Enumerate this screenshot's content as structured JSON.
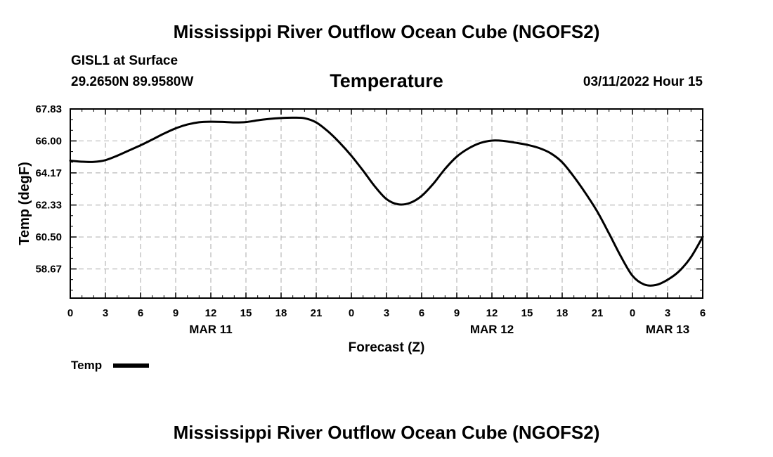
{
  "header": {
    "title": "Mississippi River Outflow Ocean Cube (NGOFS2)",
    "station": "GISL1 at Surface",
    "coords": "29.2650N  89.9580W",
    "datetime": "03/11/2022 Hour 15"
  },
  "footer": {
    "title": "Mississippi River Outflow Ocean Cube (NGOFS2)"
  },
  "chart_data": {
    "type": "line",
    "title": "Temperature",
    "xlabel": "Forecast (Z)",
    "ylabel": "Temp (degF)",
    "xlim": [
      0,
      54
    ],
    "ylim": [
      57.0,
      67.83
    ],
    "yticks": [
      67.83,
      66.0,
      64.17,
      62.33,
      60.5,
      58.67
    ],
    "ytick_labels": [
      "67.83",
      "66.00",
      "64.17",
      "62.33",
      "60.50",
      "58.67"
    ],
    "xticks": [
      0,
      3,
      6,
      9,
      12,
      15,
      18,
      21,
      24,
      27,
      30,
      33,
      36,
      39,
      42,
      45,
      48,
      51,
      54
    ],
    "xtick_labels": [
      "0",
      "3",
      "6",
      "9",
      "12",
      "15",
      "18",
      "21",
      "0",
      "3",
      "6",
      "9",
      "12",
      "15",
      "18",
      "21",
      "0",
      "3",
      "6"
    ],
    "date_labels": [
      {
        "x": 12,
        "label": "MAR 11"
      },
      {
        "x": 36,
        "label": "MAR 12"
      },
      {
        "x": 51,
        "label": "MAR 13"
      }
    ],
    "grid": true,
    "legend": {
      "position": "bottom-left",
      "entries": [
        "Temp"
      ]
    },
    "series": [
      {
        "name": "Temp",
        "color": "#000000",
        "x": [
          0,
          1,
          2,
          3,
          4,
          5,
          6,
          7,
          8,
          9,
          10,
          11,
          12,
          13,
          14,
          15,
          16,
          17,
          18,
          19,
          20,
          21,
          22,
          23,
          24,
          25,
          26,
          27,
          28,
          29,
          30,
          31,
          32,
          33,
          34,
          35,
          36,
          37,
          38,
          39,
          40,
          41,
          42,
          43,
          44,
          45,
          46,
          47,
          48,
          49,
          50,
          51,
          52,
          53,
          54
        ],
        "y": [
          64.87,
          64.81,
          64.8,
          64.9,
          65.15,
          65.45,
          65.75,
          66.08,
          66.42,
          66.72,
          66.94,
          67.07,
          67.1,
          67.09,
          67.06,
          67.08,
          67.18,
          67.26,
          67.31,
          67.33,
          67.3,
          67.06,
          66.55,
          65.9,
          65.15,
          64.3,
          63.4,
          62.67,
          62.37,
          62.45,
          62.85,
          63.55,
          64.4,
          65.1,
          65.57,
          65.88,
          66.02,
          66.0,
          65.9,
          65.78,
          65.6,
          65.3,
          64.78,
          63.95,
          63.0,
          61.95,
          60.7,
          59.4,
          58.28,
          57.78,
          57.75,
          58.05,
          58.55,
          59.35,
          60.51
        ]
      }
    ]
  }
}
